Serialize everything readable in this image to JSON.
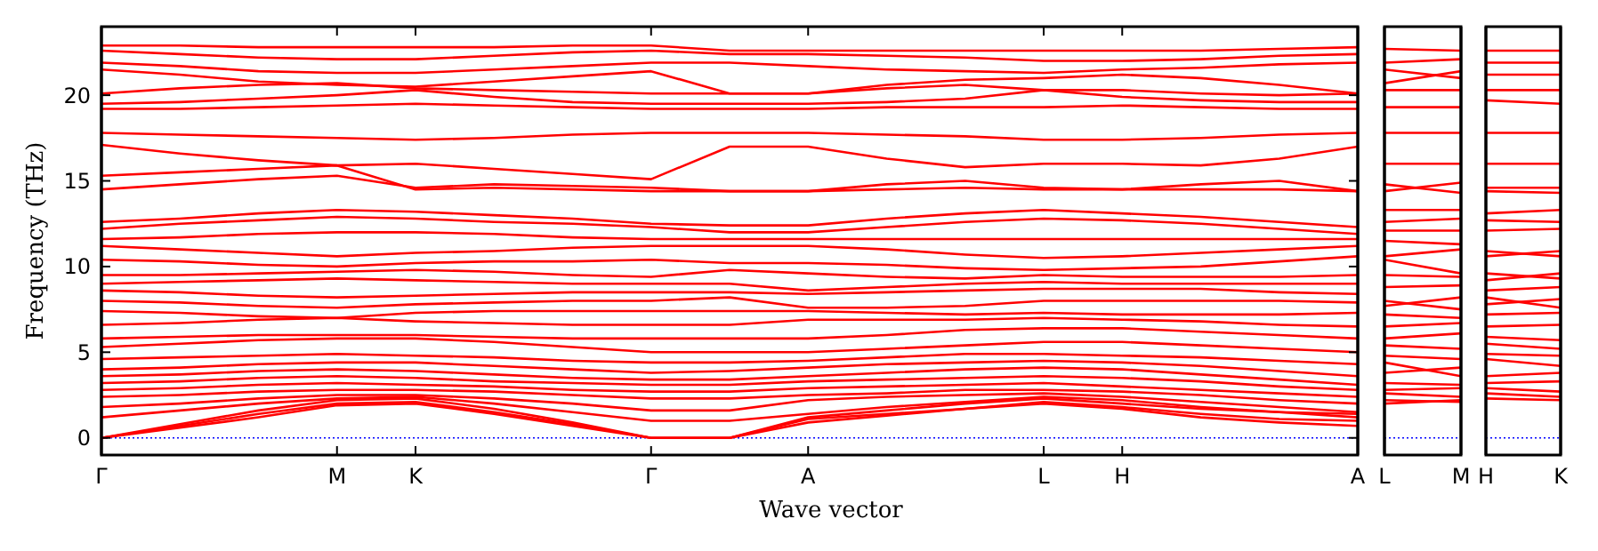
{
  "chart_data": [
    {
      "type": "line",
      "xlabel": "Wave vector",
      "ylabel": "Frequency (THz)",
      "ylim": [
        -1,
        24
      ],
      "yticks": [
        0,
        5,
        10,
        15,
        20
      ],
      "categories": [
        "Γ",
        null,
        null,
        "M",
        "K",
        null,
        null,
        "Γ",
        null,
        "A",
        null,
        null,
        "L",
        "H",
        null,
        null,
        "A"
      ],
      "ref_lines": [
        {
          "axis": "y",
          "value": 0,
          "color": "#0000ff",
          "line_style": "dotted"
        }
      ],
      "series": [
        {
          "color": "#ff0000",
          "values": [
            22.9,
            22.9,
            22.8,
            22.8,
            22.8,
            22.8,
            22.9,
            22.9,
            22.6,
            22.6,
            22.6,
            22.6,
            22.6,
            22.6,
            22.6,
            22.7,
            22.8
          ]
        },
        {
          "color": "#ff0000",
          "values": [
            22.6,
            22.4,
            22.2,
            22.1,
            22.1,
            22.3,
            22.5,
            22.6,
            22.4,
            22.4,
            22.3,
            22.2,
            22.0,
            22.0,
            22.1,
            22.3,
            22.4
          ]
        },
        {
          "color": "#ff0000",
          "values": [
            21.9,
            21.7,
            21.4,
            21.3,
            21.3,
            21.5,
            21.7,
            21.9,
            21.9,
            21.7,
            21.5,
            21.4,
            21.3,
            21.5,
            21.6,
            21.8,
            21.9
          ]
        },
        {
          "color": "#ff0000",
          "values": [
            21.5,
            21.2,
            20.8,
            20.6,
            20.5,
            20.8,
            21.1,
            21.4,
            20.1,
            20.1,
            20.6,
            20.9,
            21.0,
            21.2,
            21.0,
            20.6,
            20.1
          ]
        },
        {
          "color": "#ff0000",
          "values": [
            20.1,
            20.4,
            20.6,
            20.7,
            20.4,
            20.3,
            20.2,
            20.1,
            20.1,
            20.1,
            20.4,
            20.6,
            20.3,
            20.3,
            20.1,
            20.0,
            20.1
          ]
        },
        {
          "color": "#ff0000",
          "values": [
            19.5,
            19.6,
            19.8,
            20.0,
            20.3,
            19.9,
            19.6,
            19.5,
            19.5,
            19.5,
            19.6,
            19.8,
            20.3,
            19.9,
            19.7,
            19.6,
            19.6
          ]
        },
        {
          "color": "#ff0000",
          "values": [
            19.2,
            19.2,
            19.3,
            19.4,
            19.5,
            19.4,
            19.3,
            19.2,
            19.2,
            19.2,
            19.3,
            19.3,
            19.3,
            19.4,
            19.3,
            19.2,
            19.2
          ]
        },
        {
          "color": "#ff0000",
          "values": [
            17.8,
            17.7,
            17.6,
            17.5,
            17.4,
            17.5,
            17.7,
            17.8,
            17.8,
            17.8,
            17.7,
            17.6,
            17.4,
            17.4,
            17.5,
            17.7,
            17.8
          ]
        },
        {
          "color": "#ff0000",
          "values": [
            17.1,
            16.6,
            16.2,
            15.9,
            16.0,
            15.7,
            15.4,
            15.1,
            17.0,
            17.0,
            16.3,
            15.8,
            16.0,
            16.0,
            15.9,
            16.3,
            17.0
          ]
        },
        {
          "color": "#ff0000",
          "values": [
            15.3,
            15.5,
            15.7,
            15.9,
            14.5,
            14.6,
            14.5,
            14.4,
            14.4,
            14.4,
            14.8,
            15.0,
            14.6,
            14.5,
            14.8,
            15.0,
            14.4
          ]
        },
        {
          "color": "#ff0000",
          "values": [
            14.5,
            14.8,
            15.1,
            15.3,
            14.6,
            14.8,
            14.7,
            14.6,
            14.4,
            14.4,
            14.5,
            14.6,
            14.5,
            14.5,
            14.5,
            14.5,
            14.4
          ]
        },
        {
          "color": "#ff0000",
          "values": [
            12.6,
            12.8,
            13.1,
            13.3,
            13.2,
            13.0,
            12.8,
            12.5,
            12.4,
            12.4,
            12.8,
            13.1,
            13.3,
            13.1,
            12.9,
            12.6,
            12.3
          ]
        },
        {
          "color": "#ff0000",
          "values": [
            12.2,
            12.5,
            12.7,
            12.9,
            12.8,
            12.6,
            12.5,
            12.3,
            12.0,
            12.0,
            12.3,
            12.6,
            12.8,
            12.7,
            12.5,
            12.2,
            11.9
          ]
        },
        {
          "color": "#ff0000",
          "values": [
            11.6,
            11.7,
            11.9,
            12.0,
            12.0,
            11.9,
            11.7,
            11.6,
            11.6,
            11.6,
            11.6,
            11.6,
            11.6,
            11.6,
            11.6,
            11.6,
            11.6
          ]
        },
        {
          "color": "#ff0000",
          "values": [
            11.2,
            11.0,
            10.8,
            10.6,
            10.8,
            10.9,
            11.1,
            11.2,
            11.2,
            11.2,
            11.0,
            10.7,
            10.5,
            10.6,
            10.8,
            11.0,
            11.2
          ]
        },
        {
          "color": "#ff0000",
          "values": [
            10.4,
            10.3,
            10.1,
            10.0,
            10.2,
            10.3,
            10.3,
            10.4,
            10.2,
            10.2,
            10.1,
            9.9,
            9.8,
            9.9,
            10.0,
            10.3,
            10.6
          ]
        },
        {
          "color": "#ff0000",
          "values": [
            9.5,
            9.5,
            9.6,
            9.7,
            9.8,
            9.7,
            9.5,
            9.4,
            9.8,
            9.6,
            9.4,
            9.3,
            9.5,
            9.4,
            9.4,
            9.4,
            9.5
          ]
        },
        {
          "color": "#ff0000",
          "values": [
            9.0,
            9.1,
            9.2,
            9.3,
            9.2,
            9.1,
            9.0,
            9.0,
            9.0,
            8.6,
            8.8,
            9.0,
            9.1,
            9.0,
            9.0,
            9.0,
            9.0
          ]
        },
        {
          "color": "#ff0000",
          "values": [
            8.6,
            8.5,
            8.3,
            8.2,
            8.3,
            8.4,
            8.5,
            8.5,
            8.5,
            8.4,
            8.5,
            8.6,
            8.7,
            8.7,
            8.7,
            8.5,
            8.4
          ]
        },
        {
          "color": "#ff0000",
          "values": [
            8.0,
            7.9,
            7.7,
            7.6,
            7.8,
            7.9,
            8.0,
            8.0,
            8.2,
            7.6,
            7.6,
            7.7,
            8.0,
            8.0,
            8.0,
            8.0,
            7.9
          ]
        },
        {
          "color": "#ff0000",
          "values": [
            7.4,
            7.3,
            7.1,
            7.0,
            7.3,
            7.4,
            7.4,
            7.4,
            7.4,
            7.4,
            7.3,
            7.2,
            7.3,
            7.2,
            7.2,
            7.2,
            7.3
          ]
        },
        {
          "color": "#ff0000",
          "values": [
            6.6,
            6.7,
            6.9,
            7.0,
            6.8,
            6.7,
            6.6,
            6.6,
            6.6,
            6.9,
            6.9,
            6.9,
            7.0,
            6.9,
            6.8,
            6.6,
            6.5
          ]
        },
        {
          "color": "#ff0000",
          "values": [
            5.8,
            5.9,
            6.0,
            6.0,
            6.0,
            5.9,
            5.8,
            5.8,
            5.8,
            5.8,
            6.0,
            6.3,
            6.4,
            6.4,
            6.2,
            6.0,
            5.8
          ]
        },
        {
          "color": "#ff0000",
          "values": [
            5.3,
            5.5,
            5.7,
            5.8,
            5.8,
            5.6,
            5.3,
            5.0,
            5.0,
            5.0,
            5.2,
            5.4,
            5.6,
            5.6,
            5.4,
            5.2,
            5.0
          ]
        },
        {
          "color": "#ff0000",
          "values": [
            4.6,
            4.7,
            4.8,
            4.9,
            4.8,
            4.7,
            4.5,
            4.4,
            4.4,
            4.5,
            4.7,
            4.9,
            4.9,
            4.8,
            4.7,
            4.5,
            4.3
          ]
        },
        {
          "color": "#ff0000",
          "values": [
            4.0,
            4.1,
            4.3,
            4.4,
            4.4,
            4.2,
            4.0,
            3.8,
            3.9,
            4.1,
            4.3,
            4.4,
            4.5,
            4.4,
            4.2,
            3.9,
            3.6
          ]
        },
        {
          "color": "#ff0000",
          "values": [
            3.6,
            3.7,
            3.9,
            4.0,
            3.9,
            3.7,
            3.5,
            3.4,
            3.4,
            3.6,
            3.8,
            4.0,
            4.1,
            4.0,
            3.7,
            3.4,
            3.1
          ]
        },
        {
          "color": "#ff0000",
          "values": [
            3.2,
            3.3,
            3.5,
            3.6,
            3.5,
            3.3,
            3.2,
            3.1,
            3.1,
            3.3,
            3.4,
            3.5,
            3.6,
            3.5,
            3.3,
            3.0,
            2.8
          ]
        },
        {
          "color": "#ff0000",
          "values": [
            2.8,
            2.9,
            3.1,
            3.2,
            3.1,
            3.0,
            2.8,
            2.7,
            2.7,
            2.9,
            3.0,
            3.1,
            3.2,
            3.0,
            2.8,
            2.6,
            2.4
          ]
        },
        {
          "color": "#ff0000",
          "values": [
            2.4,
            2.5,
            2.7,
            2.8,
            2.8,
            2.7,
            2.5,
            2.3,
            2.3,
            2.5,
            2.6,
            2.8,
            2.8,
            2.7,
            2.5,
            2.2,
            2.0
          ]
        },
        {
          "color": "#ff0000",
          "values": [
            1.8,
            2.0,
            2.3,
            2.5,
            2.5,
            2.3,
            2.0,
            1.6,
            1.6,
            2.2,
            2.4,
            2.5,
            2.6,
            2.4,
            2.1,
            1.8,
            1.5
          ]
        },
        {
          "color": "#ff0000",
          "values": [
            1.2,
            1.6,
            2.0,
            2.3,
            2.4,
            2.0,
            1.5,
            1.0,
            1.0,
            1.4,
            1.8,
            2.1,
            2.4,
            2.2,
            1.8,
            1.5,
            1.2
          ]
        },
        {
          "color": "#ff0000",
          "values": [
            0,
            0.8,
            1.6,
            2.2,
            2.3,
            1.7,
            0.9,
            0,
            0,
            1.2,
            1.6,
            2.0,
            2.3,
            2.0,
            1.7,
            1.5,
            1.4
          ]
        },
        {
          "color": "#ff0000",
          "values": [
            0,
            0.7,
            1.4,
            2.0,
            2.1,
            1.5,
            0.8,
            0,
            0,
            0.9,
            1.3,
            1.7,
            2.1,
            1.8,
            1.4,
            1.1,
            1.0
          ]
        },
        {
          "color": "#ff0000",
          "values": [
            0,
            0.6,
            1.2,
            1.9,
            2.0,
            1.4,
            0.7,
            0,
            0,
            1.1,
            1.4,
            1.7,
            2.0,
            1.7,
            1.2,
            0.9,
            0.7
          ]
        }
      ]
    },
    {
      "type": "line",
      "ylim": [
        -1,
        24
      ],
      "tick_labels": "x",
      "categories": [
        "L",
        "M"
      ],
      "ref_lines": [
        {
          "axis": "y",
          "value": 0,
          "color": "#0000ff",
          "line_style": "dotted"
        }
      ],
      "series": [
        {
          "color": "#ff0000",
          "values": [
            22.7,
            22.6
          ]
        },
        {
          "color": "#ff0000",
          "values": [
            21.9,
            22.1
          ]
        },
        {
          "color": "#ff0000",
          "values": [
            21.5,
            21.0
          ]
        },
        {
          "color": "#ff0000",
          "values": [
            20.7,
            21.4
          ]
        },
        {
          "color": "#ff0000",
          "values": [
            20.3,
            20.3
          ]
        },
        {
          "color": "#ff0000",
          "values": [
            19.3,
            19.3
          ]
        },
        {
          "color": "#ff0000",
          "values": [
            17.8,
            17.8
          ]
        },
        {
          "color": "#ff0000",
          "values": [
            16.0,
            16.0
          ]
        },
        {
          "color": "#ff0000",
          "values": [
            14.8,
            14.3
          ]
        },
        {
          "color": "#ff0000",
          "values": [
            14.4,
            14.9
          ]
        },
        {
          "color": "#ff0000",
          "values": [
            13.3,
            13.3
          ]
        },
        {
          "color": "#ff0000",
          "values": [
            12.6,
            12.8
          ]
        },
        {
          "color": "#ff0000",
          "values": [
            12.1,
            12.1
          ]
        },
        {
          "color": "#ff0000",
          "values": [
            11.5,
            11.3
          ]
        },
        {
          "color": "#ff0000",
          "values": [
            10.6,
            11.0
          ]
        },
        {
          "color": "#ff0000",
          "values": [
            10.4,
            9.6
          ]
        },
        {
          "color": "#ff0000",
          "values": [
            9.5,
            9.4
          ]
        },
        {
          "color": "#ff0000",
          "values": [
            8.8,
            8.9
          ]
        },
        {
          "color": "#ff0000",
          "values": [
            8.0,
            7.5
          ]
        },
        {
          "color": "#ff0000",
          "values": [
            7.7,
            8.2
          ]
        },
        {
          "color": "#ff0000",
          "values": [
            7.2,
            7.0
          ]
        },
        {
          "color": "#ff0000",
          "values": [
            6.5,
            6.7
          ]
        },
        {
          "color": "#ff0000",
          "values": [
            5.8,
            6.1
          ]
        },
        {
          "color": "#ff0000",
          "values": [
            5.4,
            5.2
          ]
        },
        {
          "color": "#ff0000",
          "values": [
            4.8,
            4.6
          ]
        },
        {
          "color": "#ff0000",
          "values": [
            4.4,
            3.6
          ]
        },
        {
          "color": "#ff0000",
          "values": [
            3.8,
            4.1
          ]
        },
        {
          "color": "#ff0000",
          "values": [
            3.2,
            3.1
          ]
        },
        {
          "color": "#ff0000",
          "values": [
            2.8,
            2.9
          ]
        },
        {
          "color": "#ff0000",
          "values": [
            2.6,
            2.4
          ]
        },
        {
          "color": "#ff0000",
          "values": [
            2.2,
            2.1
          ]
        },
        {
          "color": "#ff0000",
          "values": [
            2.0,
            2.2
          ]
        }
      ]
    },
    {
      "type": "line",
      "ylim": [
        -1,
        24
      ],
      "tick_labels": "x",
      "categories": [
        "H",
        "K"
      ],
      "ref_lines": [
        {
          "axis": "y",
          "value": 0,
          "color": "#0000ff",
          "line_style": "dotted"
        }
      ],
      "series": [
        {
          "color": "#ff0000",
          "values": [
            22.6,
            22.6
          ]
        },
        {
          "color": "#ff0000",
          "values": [
            21.9,
            21.9
          ]
        },
        {
          "color": "#ff0000",
          "values": [
            21.2,
            21.2
          ]
        },
        {
          "color": "#ff0000",
          "values": [
            20.3,
            20.3
          ]
        },
        {
          "color": "#ff0000",
          "values": [
            19.7,
            19.5
          ]
        },
        {
          "color": "#ff0000",
          "values": [
            17.8,
            17.8
          ]
        },
        {
          "color": "#ff0000",
          "values": [
            16.0,
            16.0
          ]
        },
        {
          "color": "#ff0000",
          "values": [
            14.6,
            14.6
          ]
        },
        {
          "color": "#ff0000",
          "values": [
            14.4,
            14.3
          ]
        },
        {
          "color": "#ff0000",
          "values": [
            13.1,
            13.3
          ]
        },
        {
          "color": "#ff0000",
          "values": [
            12.7,
            12.6
          ]
        },
        {
          "color": "#ff0000",
          "values": [
            12.1,
            12.2
          ]
        },
        {
          "color": "#ff0000",
          "values": [
            10.9,
            10.6
          ]
        },
        {
          "color": "#ff0000",
          "values": [
            10.6,
            10.9
          ]
        },
        {
          "color": "#ff0000",
          "values": [
            9.6,
            9.3
          ]
        },
        {
          "color": "#ff0000",
          "values": [
            9.2,
            9.6
          ]
        },
        {
          "color": "#ff0000",
          "values": [
            8.6,
            8.8
          ]
        },
        {
          "color": "#ff0000",
          "values": [
            8.2,
            7.6
          ]
        },
        {
          "color": "#ff0000",
          "values": [
            7.8,
            8.1
          ]
        },
        {
          "color": "#ff0000",
          "values": [
            7.2,
            7.3
          ]
        },
        {
          "color": "#ff0000",
          "values": [
            6.5,
            6.6
          ]
        },
        {
          "color": "#ff0000",
          "values": [
            5.9,
            5.7
          ]
        },
        {
          "color": "#ff0000",
          "values": [
            5.5,
            5.2
          ]
        },
        {
          "color": "#ff0000",
          "values": [
            4.9,
            4.8
          ]
        },
        {
          "color": "#ff0000",
          "values": [
            4.6,
            4.2
          ]
        },
        {
          "color": "#ff0000",
          "values": [
            3.6,
            3.8
          ]
        },
        {
          "color": "#ff0000",
          "values": [
            3.2,
            3.3
          ]
        },
        {
          "color": "#ff0000",
          "values": [
            2.9,
            2.7
          ]
        },
        {
          "color": "#ff0000",
          "values": [
            2.6,
            2.4
          ]
        },
        {
          "color": "#ff0000",
          "values": [
            2.3,
            2.2
          ]
        }
      ]
    }
  ]
}
